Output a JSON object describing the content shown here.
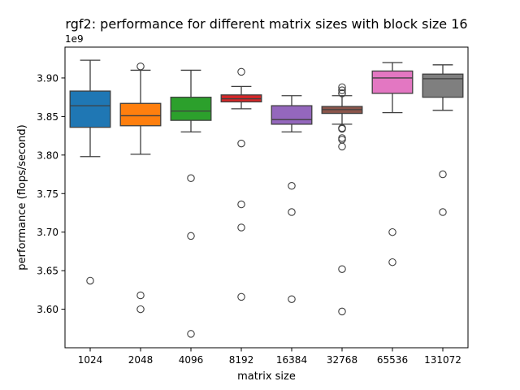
{
  "chart_data": {
    "type": "box",
    "title": "rgf2: performance for different matrix sizes with block size 16",
    "xlabel": "matrix size",
    "ylabel": "performance (flops/second)",
    "y_offset_label": "1e9",
    "y_multiplier": 1000000000,
    "ylim": [
      3.55,
      3.94
    ],
    "yticks": [
      3.6,
      3.65,
      3.7,
      3.75,
      3.8,
      3.85,
      3.9
    ],
    "ytick_labels": [
      "3.60",
      "3.65",
      "3.70",
      "3.75",
      "3.80",
      "3.85",
      "3.90"
    ],
    "grid": false,
    "categories": [
      "1024",
      "2048",
      "4096",
      "8192",
      "16384",
      "32768",
      "65536",
      "131072"
    ],
    "boxes": [
      {
        "category": "1024",
        "color": "#1f77b4",
        "whisker_low": 3.798,
        "q1": 3.836,
        "median": 3.864,
        "q3": 3.883,
        "whisker_high": 3.923,
        "outliers": [
          3.637
        ]
      },
      {
        "category": "2048",
        "color": "#ff7f0e",
        "whisker_low": 3.801,
        "q1": 3.838,
        "median": 3.851,
        "q3": 3.867,
        "whisker_high": 3.91,
        "outliers": [
          3.915,
          3.618,
          3.6
        ]
      },
      {
        "category": "4096",
        "color": "#2ca02c",
        "whisker_low": 3.83,
        "q1": 3.845,
        "median": 3.857,
        "q3": 3.875,
        "whisker_high": 3.91,
        "outliers": [
          3.77,
          3.695,
          3.568
        ]
      },
      {
        "category": "8192",
        "color": "#d62728",
        "whisker_low": 3.86,
        "q1": 3.869,
        "median": 3.873,
        "q3": 3.878,
        "whisker_high": 3.889,
        "outliers": [
          3.908,
          3.815,
          3.736,
          3.706,
          3.616
        ]
      },
      {
        "category": "16384",
        "color": "#9467bd",
        "whisker_low": 3.83,
        "q1": 3.84,
        "median": 3.846,
        "q3": 3.864,
        "whisker_high": 3.877,
        "outliers": [
          3.76,
          3.726,
          3.613
        ]
      },
      {
        "category": "32768",
        "color": "#8c564b",
        "whisker_low": 3.84,
        "q1": 3.854,
        "median": 3.859,
        "q3": 3.863,
        "whisker_high": 3.877,
        "outliers": [
          3.888,
          3.884,
          3.88,
          3.88,
          3.835,
          3.834,
          3.822,
          3.82,
          3.811,
          3.652,
          3.597
        ]
      },
      {
        "category": "65536",
        "color": "#e377c2",
        "whisker_low": 3.855,
        "q1": 3.88,
        "median": 3.9,
        "q3": 3.909,
        "whisker_high": 3.92,
        "outliers": [
          3.7,
          3.661
        ]
      },
      {
        "category": "131072",
        "color": "#7f7f7f",
        "whisker_low": 3.858,
        "q1": 3.875,
        "median": 3.899,
        "q3": 3.905,
        "whisker_high": 3.917,
        "outliers": [
          3.775,
          3.726
        ]
      }
    ]
  }
}
